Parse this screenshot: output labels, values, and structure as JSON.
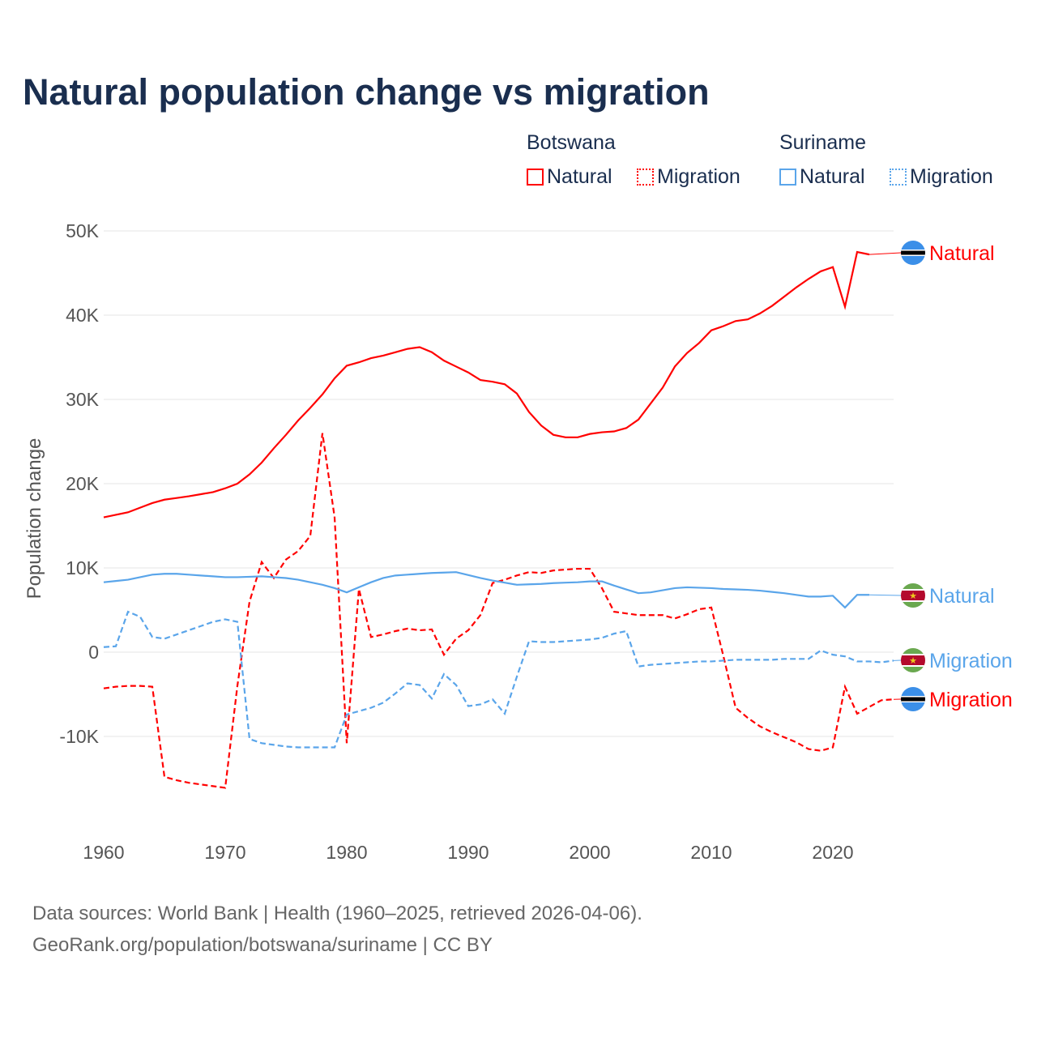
{
  "title": "Natural population change vs migration",
  "legend": {
    "groups": [
      {
        "name": "Botswana",
        "items": [
          "Natural",
          "Migration"
        ]
      },
      {
        "name": "Suriname",
        "items": [
          "Natural",
          "Migration"
        ]
      }
    ]
  },
  "footer": [
    "Data sources: World Bank | Health (1960–2025, retrieved 2026-04-06).",
    "GeoRank.org/population/botswana/suriname | CC BY"
  ],
  "colors": {
    "botswana": "#ff0000",
    "suriname": "#5aa5ea"
  },
  "chart_data": {
    "type": "line",
    "title": "Natural population change vs migration",
    "xlabel": "",
    "ylabel": "Population change",
    "xlim": [
      1960,
      2025
    ],
    "ylim": [
      -19000,
      50000
    ],
    "xticks": [
      "1960",
      "1970",
      "1980",
      "1990",
      "2000",
      "2010",
      "2020"
    ],
    "yticks": [
      {
        "v": 50000,
        "l": "50K"
      },
      {
        "v": 40000,
        "l": "40K"
      },
      {
        "v": 30000,
        "l": "30K"
      },
      {
        "v": 20000,
        "l": "20K"
      },
      {
        "v": 10000,
        "l": "10K"
      },
      {
        "v": 0,
        "l": "0"
      },
      {
        "v": -10000,
        "l": "-10K"
      }
    ],
    "grid": true,
    "series": [
      {
        "name": "Botswana Natural",
        "label": "Natural",
        "country": "Botswana",
        "dash": false,
        "start": 1960,
        "values": [
          16000,
          16300,
          16600,
          17150,
          17700,
          18100,
          18300,
          18500,
          18750,
          19000,
          19450,
          20000,
          21100,
          22500,
          24200,
          25800,
          27500,
          29000,
          30600,
          32500,
          34000,
          34400,
          34900,
          35200,
          35600,
          36000,
          36200,
          35600,
          34600,
          33900,
          33200,
          32300,
          32100,
          31800,
          30700,
          28500,
          26900,
          25800,
          25500,
          25500,
          25900,
          26100,
          26200,
          26600,
          27600,
          29500,
          31400,
          33900,
          35500,
          36700,
          38200,
          38700,
          39300,
          39500,
          40200,
          41100,
          42200,
          43300,
          44300,
          45200,
          45700,
          41000,
          47500,
          47200
        ]
      },
      {
        "name": "Botswana Migration",
        "label": "Migration",
        "country": "Botswana",
        "dash": true,
        "start": 1960,
        "values": [
          -4300,
          -4100,
          -4000,
          -4000,
          -4100,
          -14800,
          -15200,
          -15500,
          -15700,
          -15900,
          -16100,
          -4000,
          6000,
          10700,
          8800,
          11000,
          12000,
          13800,
          26000,
          16000,
          -10800,
          7500,
          1800,
          2100,
          2500,
          2800,
          2600,
          2700,
          -300,
          1600,
          2600,
          4400,
          8200,
          8600,
          9100,
          9500,
          9400,
          9700,
          9800,
          9900,
          9900,
          7600,
          4800,
          4600,
          4400,
          4400,
          4400,
          4000,
          4500,
          5100,
          5300,
          -500,
          -6600,
          -7800,
          -8800,
          -9500,
          -10100,
          -10700,
          -11500,
          -11700,
          -11300,
          -4100,
          -7300,
          -6500,
          -5700,
          -5600
        ]
      },
      {
        "name": "Suriname Natural",
        "label": "Natural",
        "country": "Suriname",
        "dash": false,
        "start": 1960,
        "values": [
          8300,
          8450,
          8600,
          8900,
          9200,
          9300,
          9300,
          9200,
          9100,
          9000,
          8900,
          8900,
          8950,
          9000,
          8900,
          8800,
          8600,
          8300,
          8000,
          7600,
          7100,
          7700,
          8300,
          8800,
          9100,
          9200,
          9300,
          9400,
          9450,
          9500,
          9150,
          8800,
          8500,
          8250,
          8000,
          8050,
          8100,
          8200,
          8250,
          8300,
          8400,
          8400,
          7900,
          7450,
          7000,
          7100,
          7350,
          7600,
          7700,
          7650,
          7600,
          7500,
          7450,
          7400,
          7300,
          7150,
          7000,
          6800,
          6600,
          6600,
          6700,
          5300,
          6800,
          6800
        ]
      },
      {
        "name": "Suriname Migration",
        "label": "Migration",
        "country": "Suriname",
        "dash": true,
        "start": 1960,
        "values": [
          600,
          700,
          4800,
          4200,
          1800,
          1600,
          2100,
          2600,
          3100,
          3600,
          3900,
          3600,
          -10300,
          -10800,
          -11000,
          -11200,
          -11300,
          -11300,
          -11300,
          -11300,
          -7400,
          -7000,
          -6600,
          -6000,
          -4900,
          -3700,
          -3900,
          -5500,
          -2600,
          -3900,
          -6400,
          -6200,
          -5600,
          -7300,
          -2900,
          1300,
          1200,
          1200,
          1300,
          1400,
          1500,
          1700,
          2200,
          2500,
          -1700,
          -1500,
          -1400,
          -1300,
          -1200,
          -1100,
          -1100,
          -1000,
          -900,
          -900,
          -900,
          -900,
          -800,
          -800,
          -800,
          200,
          -300,
          -500,
          -1100,
          -1100,
          -1200,
          -1000
        ]
      }
    ]
  }
}
